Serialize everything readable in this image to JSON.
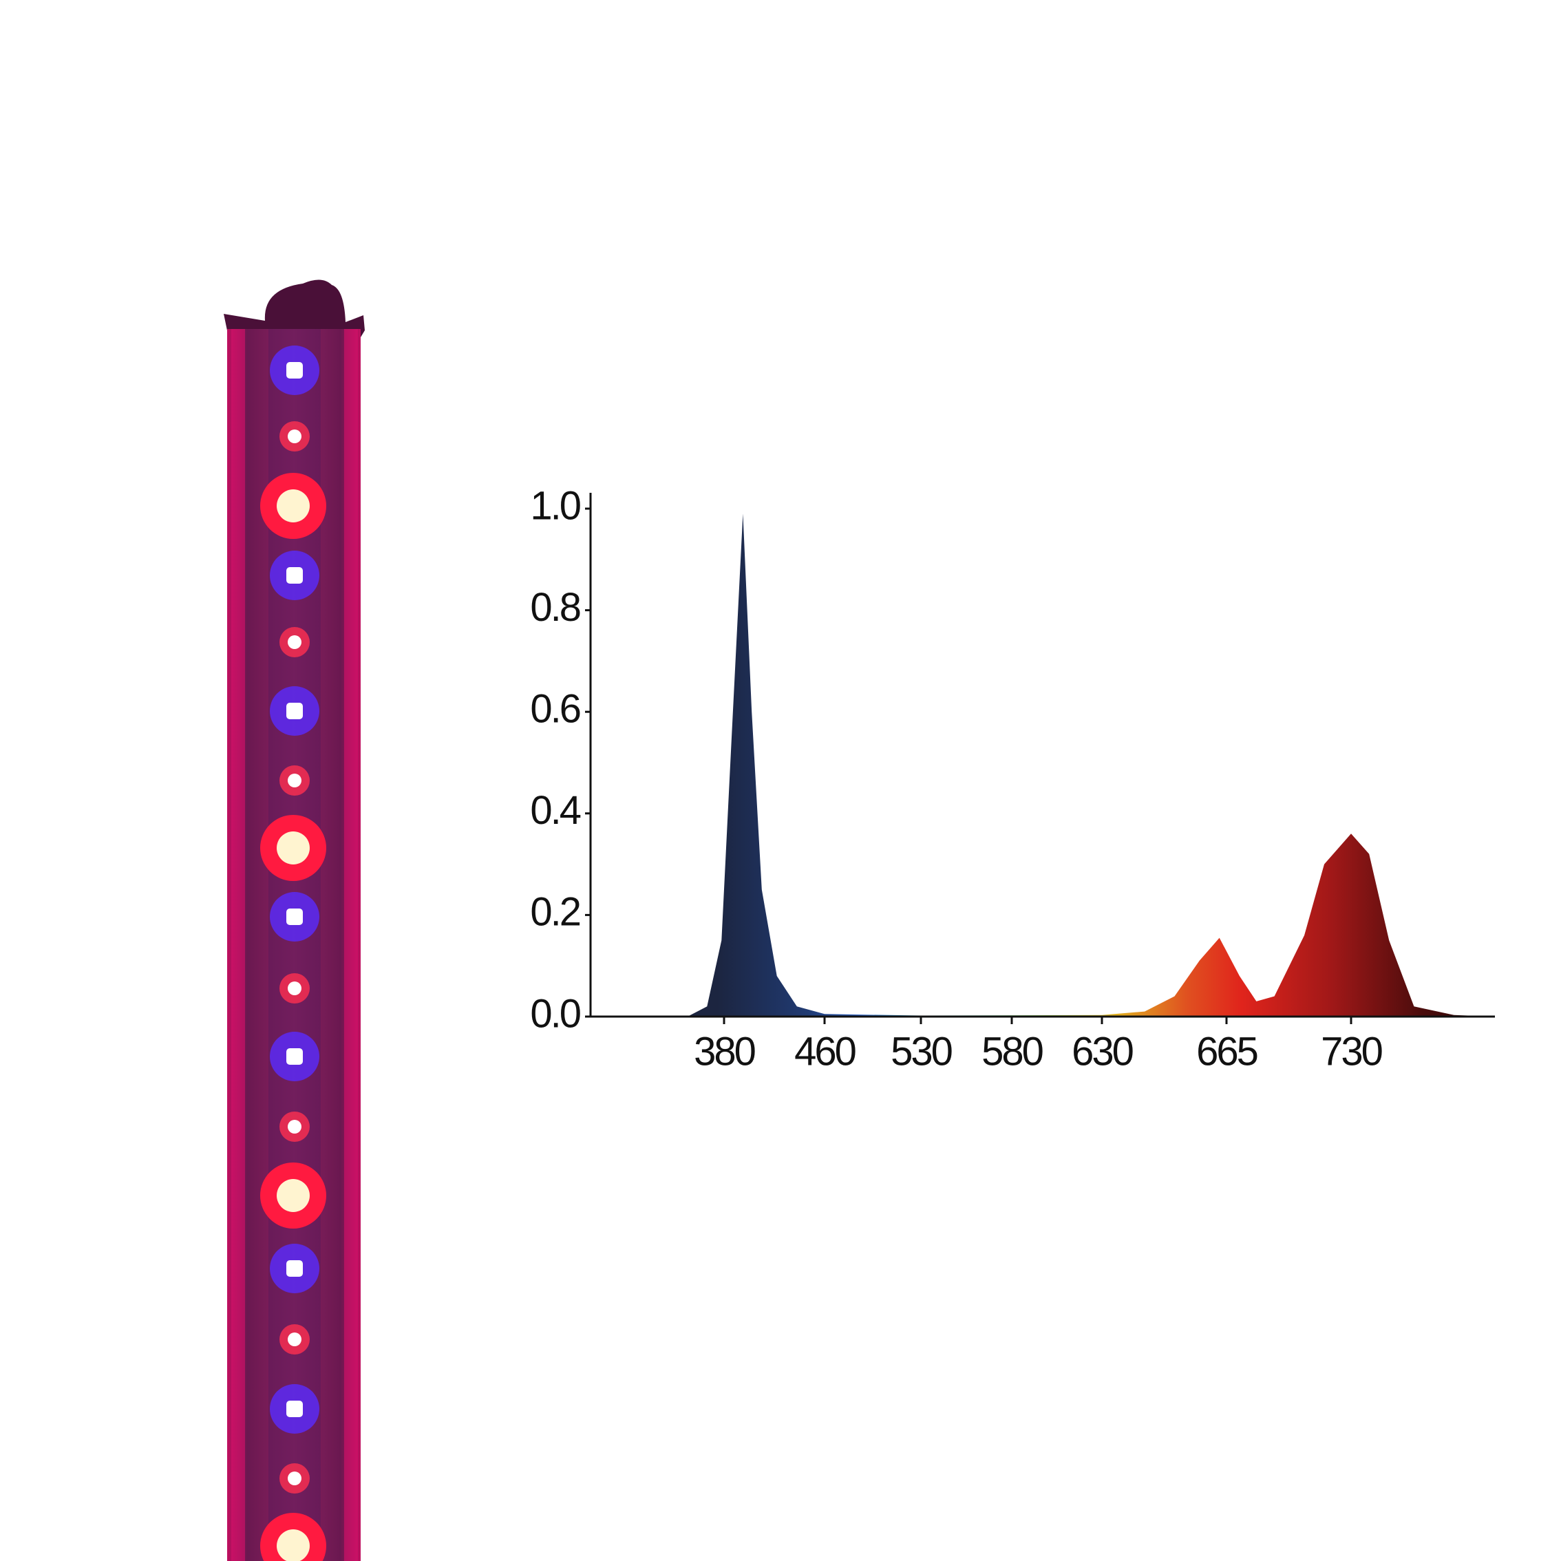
{
  "chart_data": {
    "type": "area",
    "x": [
      351,
      366.5,
      378,
      386,
      395,
      402,
      410,
      422,
      438,
      460,
      530,
      630,
      642,
      650.4,
      657.4,
      663,
      671.8,
      680.6,
      690,
      705.6,
      716,
      730,
      739.4,
      749.8,
      762.8,
      783.6,
      805
    ],
    "values": [
      0,
      0.02,
      0.15,
      0.55,
      0.99,
      0.6,
      0.25,
      0.08,
      0.02,
      0.005,
      0.002,
      0.003,
      0.01,
      0.04,
      0.11,
      0.155,
      0.08,
      0.03,
      0.04,
      0.16,
      0.3,
      0.36,
      0.32,
      0.15,
      0.02,
      0.003,
      0
    ],
    "xlim": [
      274,
      805
    ],
    "xticks": [
      380,
      460,
      530,
      580,
      630,
      665,
      730
    ],
    "ylim": [
      0,
      1.03
    ],
    "yticks": [
      {
        "value": 0,
        "label": "0.0"
      },
      0.2,
      0.4,
      0.6,
      0.8,
      {
        "value": 1,
        "label": "1.0"
      }
    ]
  }
}
